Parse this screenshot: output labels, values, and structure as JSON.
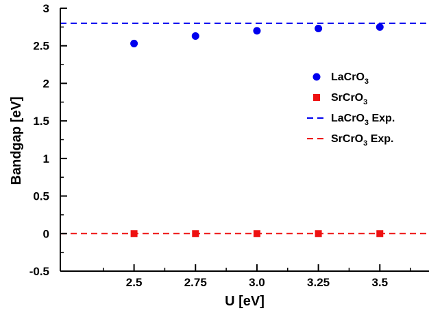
{
  "chart_data": {
    "type": "scatter",
    "xlabel": "U [eV]",
    "ylabel": "Bandgap [eV]",
    "xlim": [
      2.2,
      3.7
    ],
    "ylim": [
      -0.5,
      3
    ],
    "x_ticks": [
      {
        "value": 2.5,
        "label": "2.5"
      },
      {
        "value": 2.75,
        "label": "2.75"
      },
      {
        "value": 3.0,
        "label": "3.0"
      },
      {
        "value": 3.25,
        "label": "3.25"
      },
      {
        "value": 3.5,
        "label": "3.5"
      }
    ],
    "y_ticks": [
      {
        "value": -0.5,
        "label": "-0.5"
      },
      {
        "value": 0,
        "label": "0"
      },
      {
        "value": 0.5,
        "label": "0.5"
      },
      {
        "value": 1,
        "label": "1"
      },
      {
        "value": 1.5,
        "label": "1.5"
      },
      {
        "value": 2,
        "label": "2"
      },
      {
        "value": 2.5,
        "label": "2.5"
      },
      {
        "value": 3,
        "label": "3"
      }
    ],
    "series": [
      {
        "legend_main": "LaCrO",
        "legend_sub": "3",
        "legend_suffix": "",
        "kind": "points",
        "marker": "circle",
        "color": "#0000ee",
        "x": [
          2.5,
          2.75,
          3.0,
          3.25,
          3.5
        ],
        "y": [
          2.53,
          2.63,
          2.7,
          2.73,
          2.75
        ]
      },
      {
        "legend_main": "SrCrO",
        "legend_sub": "3",
        "legend_suffix": "",
        "kind": "points",
        "marker": "square",
        "color": "#ee1111",
        "x": [
          2.5,
          2.75,
          3.0,
          3.25,
          3.5
        ],
        "y": [
          0,
          0,
          0,
          0,
          0
        ]
      },
      {
        "legend_main": "LaCrO",
        "legend_sub": "3",
        "legend_suffix": " Exp.",
        "kind": "hline",
        "color": "#0000ee",
        "y": 2.8
      },
      {
        "legend_main": "SrCrO",
        "legend_sub": "3",
        "legend_suffix": " Exp.",
        "kind": "hline",
        "color": "#ee1111",
        "y": 0
      }
    ],
    "legend_position": "right"
  }
}
